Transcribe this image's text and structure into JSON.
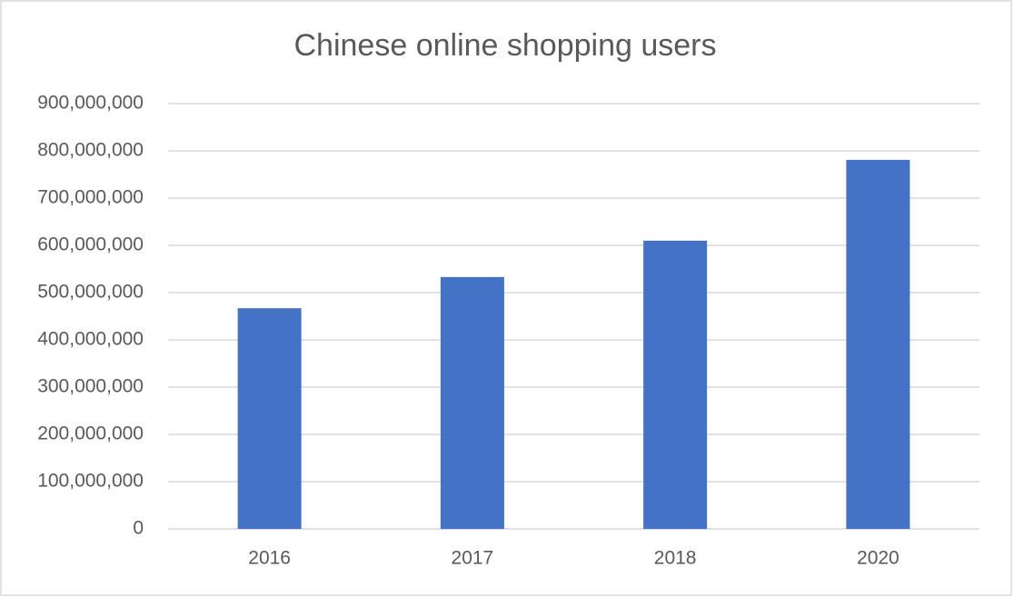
{
  "chart_data": {
    "type": "bar",
    "title": "Chinese online shopping users",
    "categories": [
      "2016",
      "2017",
      "2018",
      "2020"
    ],
    "values": [
      467000000,
      533000000,
      610000000,
      781000000
    ],
    "color": "#4472c4",
    "ylim": [
      0,
      900000000
    ],
    "yticks": [
      0,
      {
        "value": 100000000,
        "label": "100,000,000"
      },
      {
        "value": 200000000,
        "label": "200,000,000"
      },
      {
        "value": 300000000,
        "label": "300,000,000"
      },
      {
        "value": 400000000,
        "label": "400,000,000"
      },
      {
        "value": 500000000,
        "label": "500,000,000"
      },
      {
        "value": 600000000,
        "label": "600,000,000"
      },
      {
        "value": 700000000,
        "label": "700,000,000"
      },
      {
        "value": 800000000,
        "label": "800,000,000"
      },
      {
        "value": 900000000,
        "label": "900,000,000"
      }
    ],
    "grid": true
  }
}
